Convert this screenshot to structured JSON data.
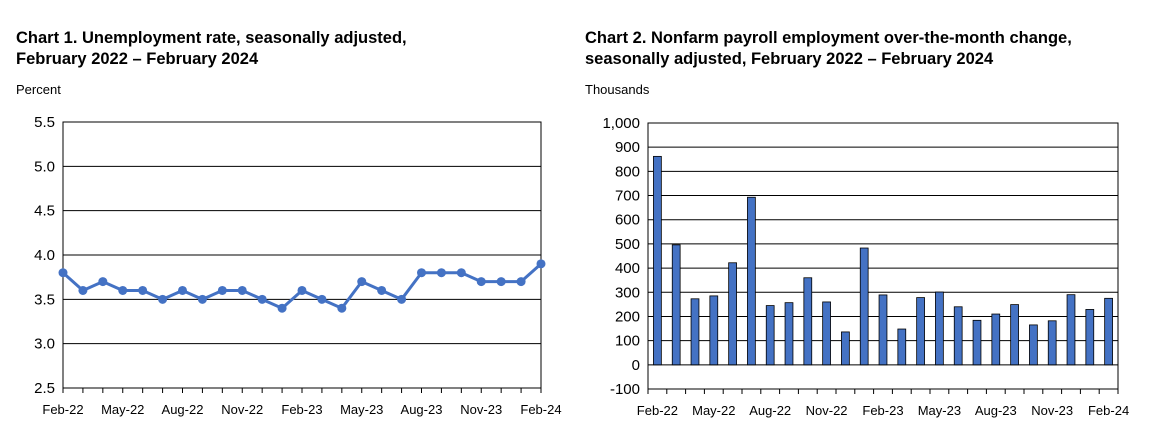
{
  "chart_data": [
    {
      "type": "line",
      "title_line1": "Chart 1. Unemployment rate, seasonally adjusted,",
      "title_line2": "February 2022 – February 2024",
      "ylabel": "Percent",
      "xlabel": "",
      "ylim": [
        2.5,
        5.5
      ],
      "yticks": [
        "2.5",
        "3.0",
        "3.5",
        "4.0",
        "4.5",
        "5.0",
        "5.5"
      ],
      "grid": true,
      "color": "#4472C4",
      "x_tick_labels": [
        "Feb-22",
        "May-22",
        "Aug-22",
        "Nov-22",
        "Feb-23",
        "May-23",
        "Aug-23",
        "Nov-23",
        "Feb-24"
      ],
      "categories": [
        "Feb-22",
        "Mar-22",
        "Apr-22",
        "May-22",
        "Jun-22",
        "Jul-22",
        "Aug-22",
        "Sep-22",
        "Oct-22",
        "Nov-22",
        "Dec-22",
        "Jan-23",
        "Feb-23",
        "Mar-23",
        "Apr-23",
        "May-23",
        "Jun-23",
        "Jul-23",
        "Aug-23",
        "Sep-23",
        "Oct-23",
        "Nov-23",
        "Dec-23",
        "Jan-24",
        "Feb-24"
      ],
      "values": [
        3.8,
        3.6,
        3.7,
        3.6,
        3.6,
        3.5,
        3.6,
        3.5,
        3.6,
        3.6,
        3.5,
        3.4,
        3.6,
        3.5,
        3.4,
        3.7,
        3.6,
        3.5,
        3.8,
        3.8,
        3.8,
        3.7,
        3.7,
        3.7,
        3.9
      ]
    },
    {
      "type": "bar",
      "title_line1": "Chart 2. Nonfarm payroll employment over-the-month change,",
      "title_line2": "seasonally adjusted, February 2022 – February 2024",
      "ylabel": "Thousands",
      "xlabel": "",
      "ylim": [
        -100,
        1000
      ],
      "yticks": [
        "-100",
        "0",
        "100",
        "200",
        "300",
        "400",
        "500",
        "600",
        "700",
        "800",
        "900",
        "1,000"
      ],
      "grid": true,
      "color": "#4472C4",
      "x_tick_labels": [
        "Feb-22",
        "May-22",
        "Aug-22",
        "Nov-22",
        "Feb-23",
        "May-23",
        "Aug-23",
        "Nov-23",
        "Feb-24"
      ],
      "categories": [
        "Feb-22",
        "Mar-22",
        "Apr-22",
        "May-22",
        "Jun-22",
        "Jul-22",
        "Aug-22",
        "Sep-22",
        "Oct-22",
        "Nov-22",
        "Dec-22",
        "Jan-23",
        "Feb-23",
        "Mar-23",
        "Apr-23",
        "May-23",
        "Jun-23",
        "Jul-23",
        "Aug-23",
        "Sep-23",
        "Oct-23",
        "Nov-23",
        "Dec-23",
        "Jan-24",
        "Feb-24"
      ],
      "values": [
        862,
        496,
        273,
        285,
        422,
        693,
        245,
        257,
        360,
        260,
        136,
        483,
        289,
        148,
        278,
        301,
        240,
        184,
        210,
        249,
        165,
        182,
        290,
        229,
        275
      ]
    }
  ]
}
